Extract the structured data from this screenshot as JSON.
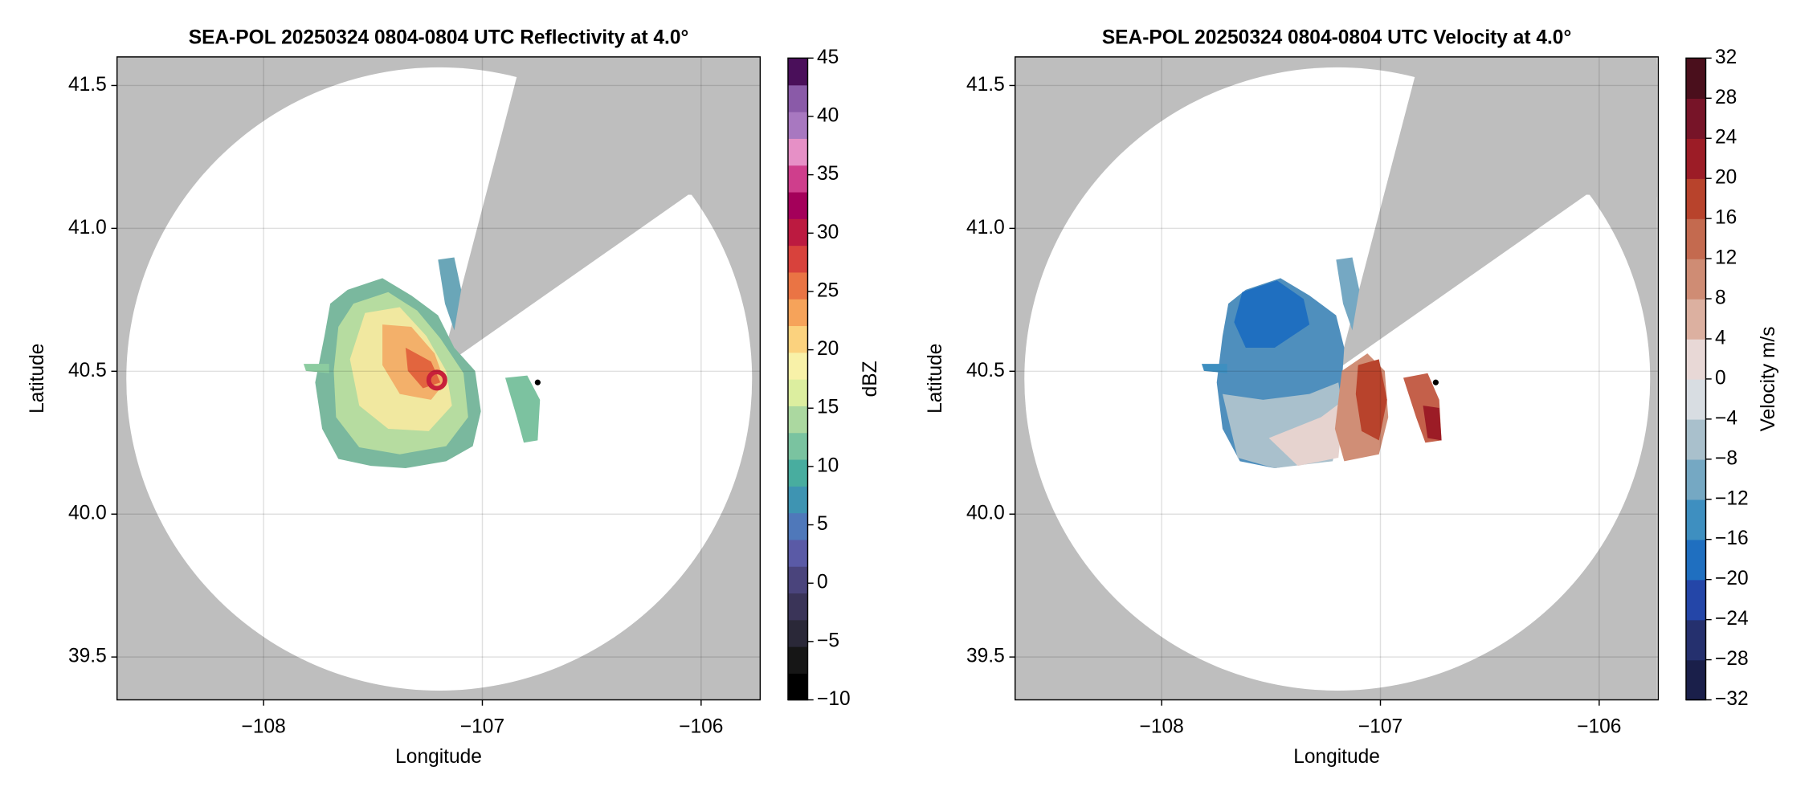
{
  "chart_data": [
    {
      "type": "radar-ppi",
      "title": "SEA-POL 20250324 0804-0804 UTC Reflectivity at 4.0°",
      "x_label": "Longitude",
      "y_label": "Latitude",
      "xlim": [
        -108.67,
        -105.73
      ],
      "ylim": [
        39.35,
        41.6
      ],
      "xticks": [
        {
          "value": -108,
          "label": "−108"
        },
        {
          "value": -107,
          "label": "−107"
        },
        {
          "value": -106,
          "label": "−106"
        }
      ],
      "yticks": [
        41.5,
        {
          "value": 41,
          "label": "41.0"
        },
        40.5,
        {
          "value": 40,
          "label": "40.0"
        },
        39.5
      ],
      "grid": true,
      "colorbar": {
        "label": "dBZ",
        "lim": [
          -10,
          45
        ],
        "ticks": [
          {
            "value": -10,
            "label": "−10"
          },
          {
            "value": -5,
            "label": "−5"
          },
          0,
          5,
          10,
          15,
          20,
          25,
          30,
          35,
          40,
          45
        ],
        "colors": [
          "#000000",
          "#161616",
          "#2a2838",
          "#3a3458",
          "#4a447c",
          "#5a5aa6",
          "#4f78ba",
          "#3e94b2",
          "#48ad9f",
          "#7ac3a0",
          "#abd8a0",
          "#dcee9f",
          "#f8f1a8",
          "#fbd27e",
          "#f6a35a",
          "#ea7444",
          "#d8423c",
          "#bc1a40",
          "#a4005a",
          "#cf3e8c",
          "#e690c6",
          "#a878c0",
          "#8a5aa8",
          "#4a0f5a"
        ]
      }
    },
    {
      "type": "radar-ppi",
      "title": "SEA-POL 20250324 0804-0804 UTC Velocity at 4.0°",
      "x_label": "Longitude",
      "y_label": "Latitude",
      "xlim": [
        -108.67,
        -105.73
      ],
      "ylim": [
        39.35,
        41.6
      ],
      "xticks": [
        {
          "value": -108,
          "label": "−108"
        },
        {
          "value": -107,
          "label": "−107"
        },
        {
          "value": -106,
          "label": "−106"
        }
      ],
      "yticks": [
        41.5,
        {
          "value": 41,
          "label": "41.0"
        },
        40.5,
        {
          "value": 40,
          "label": "40.0"
        },
        39.5
      ],
      "grid": true,
      "colorbar": {
        "label": "Velocity m/s",
        "lim": [
          -32,
          32
        ],
        "ticks": [
          {
            "value": -32,
            "label": "−32"
          },
          {
            "value": -28,
            "label": "−28"
          },
          {
            "value": -24,
            "label": "−24"
          },
          {
            "value": -20,
            "label": "−20"
          },
          {
            "value": -16,
            "label": "−16"
          },
          {
            "value": -12,
            "label": "−12"
          },
          {
            "value": -8,
            "label": "−8"
          },
          {
            "value": -4,
            "label": "−4"
          },
          0,
          4,
          8,
          12,
          16,
          20,
          24,
          28,
          32
        ],
        "colors": [
          "#1a1f4a",
          "#25306e",
          "#2446a8",
          "#1f6fc0",
          "#3e8fc0",
          "#75a8c3",
          "#a9c0cc",
          "#d8dde2",
          "#e8d8d6",
          "#dcb0a0",
          "#cf8c74",
          "#c46a4f",
          "#b8432c",
          "#9c1c26",
          "#771428",
          "#4a0f1c"
        ]
      }
    }
  ]
}
